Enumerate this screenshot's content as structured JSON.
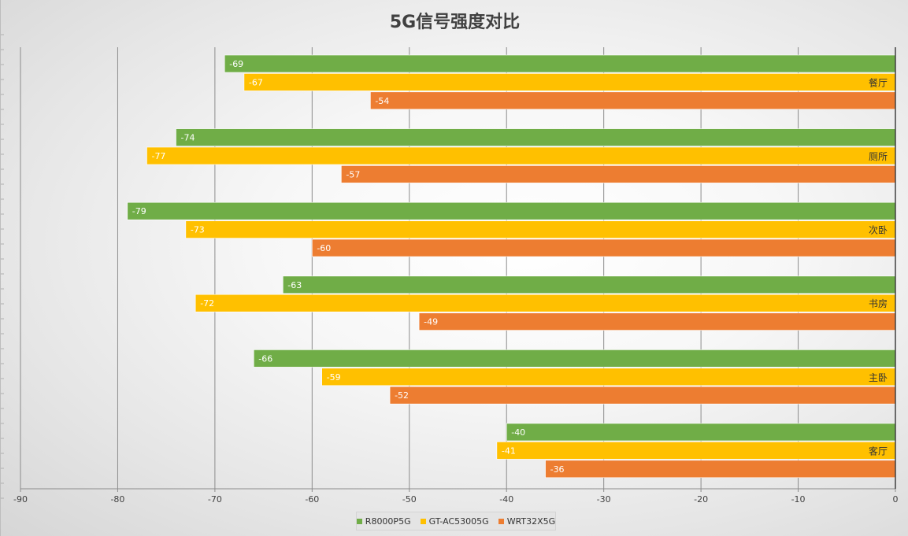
{
  "chart_data": {
    "type": "bar",
    "orientation": "horizontal",
    "title": "5G信号强度对比",
    "categories": [
      "餐厅",
      "厕所",
      "次卧",
      "书房",
      "主卧",
      "客厅"
    ],
    "series": [
      {
        "name": "R8000P5G",
        "color": "#70ad47",
        "values": [
          -69,
          -74,
          -79,
          -63,
          -66,
          -40
        ]
      },
      {
        "name": "GT-AC53005G",
        "color": "#ffc000",
        "values": [
          -67,
          -77,
          -73,
          -72,
          -59,
          -41
        ]
      },
      {
        "name": "WRT32X5G",
        "color": "#ed7d31",
        "values": [
          -54,
          -57,
          -60,
          -49,
          -52,
          -36
        ]
      }
    ],
    "xlim": [
      -90,
      0
    ],
    "xticks": [
      "-90",
      "-80",
      "-70",
      "-60",
      "-50",
      "-40",
      "-30",
      "-20",
      "-10",
      "0"
    ],
    "grid": true,
    "legend_position": "bottom",
    "data_labels": true
  }
}
